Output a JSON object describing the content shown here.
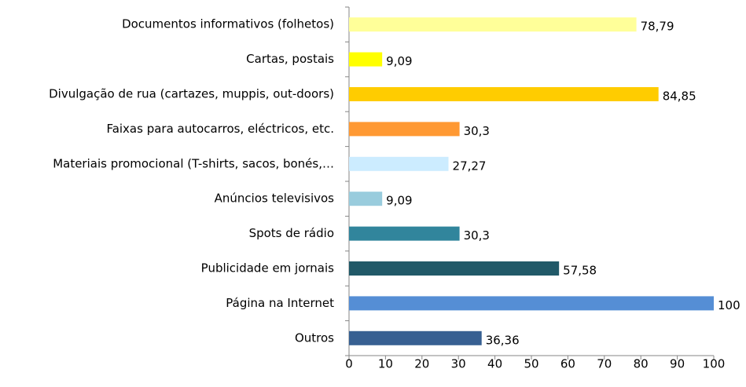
{
  "chart_data": {
    "type": "hbar",
    "categories": [
      "Documentos informativos (folhetos)",
      "Cartas, postais",
      "Divulgação de rua (cartazes, muppis, out-doors)",
      "Faixas para autocarros, eléctricos, etc.",
      "Materiais promocional (T-shirts, sacos, bonés,…",
      "Anúncios televisivos",
      "Spots de rádio",
      "Publicidade em jornais",
      "Página na Internet",
      "Outros"
    ],
    "values": [
      78.79,
      9.09,
      84.85,
      30.3,
      27.27,
      9.09,
      30.3,
      57.58,
      100,
      36.36
    ],
    "value_labels": [
      "78,79",
      "9,09",
      "84,85",
      "30,3",
      "27,27",
      "9,09",
      "30,3",
      "57,58",
      "100",
      "36,36"
    ],
    "colors": [
      "#FFFF99",
      "#FFFF00",
      "#FFCC00",
      "#FF9933",
      "#CCECFF",
      "#99CCDD",
      "#31859C",
      "#215968",
      "#558ED5",
      "#376092"
    ],
    "xlim": [
      0,
      100
    ],
    "xticks": [
      0,
      10,
      20,
      30,
      40,
      50,
      60,
      70,
      80,
      90,
      100
    ],
    "grid": false
  }
}
